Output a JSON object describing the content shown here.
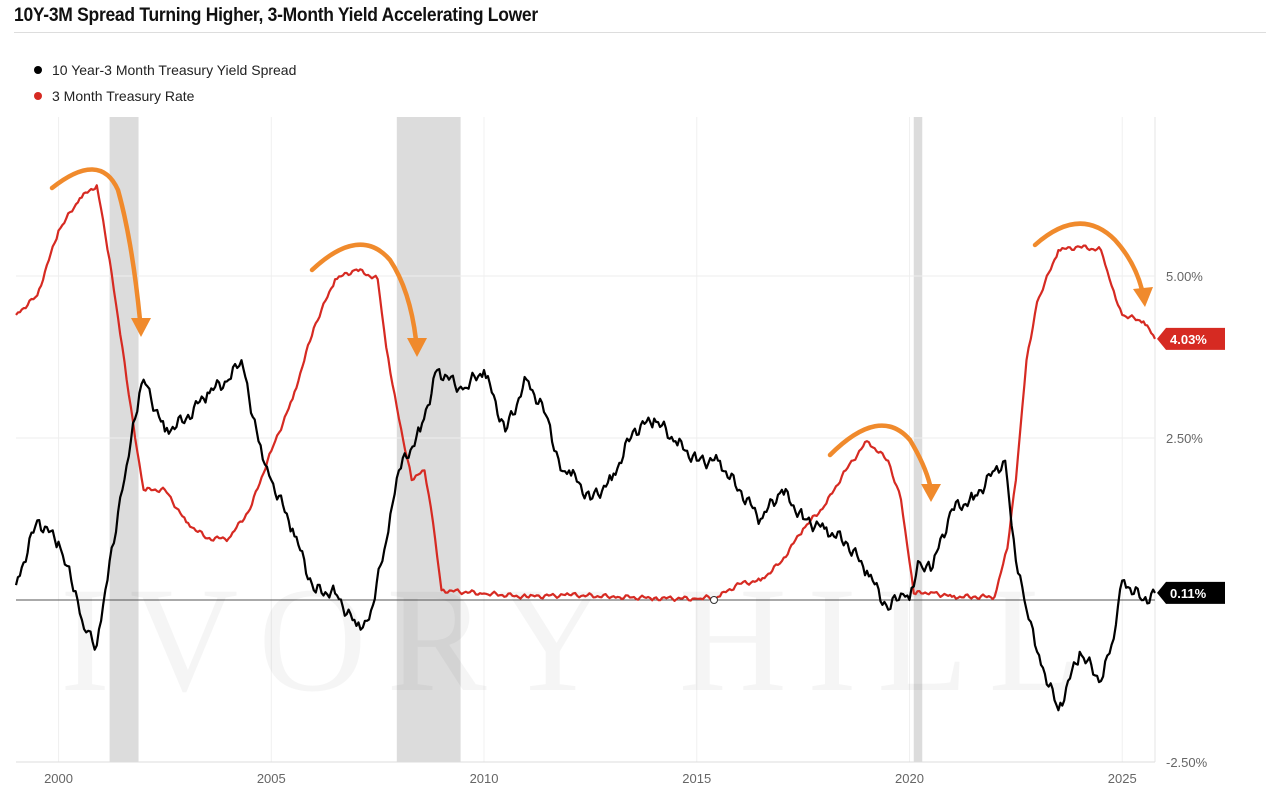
{
  "chart_data": {
    "type": "line",
    "title": "10Y-3M Spread Turning Higher, 3-Month Yield Accelerating Lower",
    "xlabel": "",
    "ylabel": "",
    "xlim": [
      1999.0,
      2025.77
    ],
    "ylim": [
      -2.5,
      7.45
    ],
    "x_ticks": [
      2000,
      2005,
      2010,
      2015,
      2020,
      2025
    ],
    "x_tick_labels": [
      "2000",
      "2005",
      "2010",
      "2015",
      "2020",
      "2025"
    ],
    "y_ticks": [
      5.0,
      2.5,
      -2.5
    ],
    "y_tick_labels": [
      "5.00%",
      "2.50%",
      "-2.50%"
    ],
    "legend_position": "top-left",
    "recessions": [
      [
        2001.2,
        2001.88
      ],
      [
        2007.95,
        2009.45
      ],
      [
        2020.1,
        2020.3
      ]
    ],
    "series": [
      {
        "name": "10 Year-3 Month Treasury Yield Spread",
        "color": "#000000",
        "last_label": "0.11%",
        "x": [
          1999.0,
          1999.5,
          2000.0,
          2000.3,
          2000.6,
          2000.9,
          2001.2,
          2001.5,
          2001.8,
          2002.0,
          2002.5,
          2003.0,
          2003.5,
          2004.0,
          2004.3,
          2004.7,
          2005.0,
          2005.5,
          2006.0,
          2006.5,
          2007.0,
          2007.3,
          2007.7,
          2008.0,
          2008.5,
          2008.9,
          2009.5,
          2010.0,
          2010.5,
          2011.0,
          2011.5,
          2011.8,
          2012.0,
          2012.5,
          2013.0,
          2013.5,
          2014.0,
          2014.5,
          2015.0,
          2015.5,
          2016.0,
          2016.5,
          2017.0,
          2017.5,
          2018.0,
          2018.5,
          2019.0,
          2019.5,
          2019.8,
          2020.0,
          2020.2,
          2020.5,
          2021.0,
          2021.5,
          2022.0,
          2022.25,
          2022.5,
          2022.75,
          2023.0,
          2023.5,
          2024.0,
          2024.5,
          2024.8,
          2025.0,
          2025.5,
          2025.77
        ],
        "y": [
          0.23,
          1.23,
          0.9,
          0.3,
          -0.45,
          -0.7,
          0.6,
          1.7,
          2.8,
          3.4,
          2.6,
          2.8,
          3.2,
          3.4,
          3.7,
          2.45,
          1.85,
          1.1,
          0.15,
          0.1,
          -0.4,
          -0.3,
          0.9,
          2.0,
          2.6,
          3.55,
          3.25,
          3.55,
          2.6,
          3.4,
          2.8,
          2.0,
          2.0,
          1.55,
          1.85,
          2.6,
          2.8,
          2.45,
          2.15,
          2.15,
          1.7,
          1.25,
          1.7,
          1.25,
          1.1,
          0.9,
          0.45,
          -0.15,
          0.1,
          0.0,
          0.6,
          0.45,
          1.4,
          1.55,
          2.0,
          2.15,
          0.6,
          -0.15,
          -0.8,
          -1.7,
          -0.8,
          -1.25,
          -0.6,
          0.3,
          0.0,
          0.11
        ]
      },
      {
        "name": "3 Month Treasury Rate",
        "color": "#d62a22",
        "last_label": "4.03%",
        "x": [
          1999.0,
          1999.5,
          2000.0,
          2000.5,
          2000.9,
          2001.2,
          2001.5,
          2001.8,
          2002.0,
          2002.5,
          2003.0,
          2003.5,
          2004.0,
          2004.5,
          2005.0,
          2005.5,
          2006.0,
          2006.5,
          2007.0,
          2007.5,
          2007.7,
          2008.0,
          2008.3,
          2008.6,
          2008.8,
          2009.0,
          2010.0,
          2011.0,
          2012.0,
          2013.0,
          2014.0,
          2015.0,
          2015.5,
          2016.0,
          2016.5,
          2017.0,
          2017.5,
          2018.0,
          2018.5,
          2019.0,
          2019.5,
          2019.8,
          2020.1,
          2020.5,
          2021.0,
          2021.5,
          2022.0,
          2022.3,
          2022.5,
          2022.75,
          2023.0,
          2023.5,
          2024.0,
          2024.5,
          2024.75,
          2025.0,
          2025.5,
          2025.77
        ],
        "y": [
          4.4,
          4.7,
          5.7,
          6.2,
          6.4,
          5.25,
          3.9,
          2.5,
          1.7,
          1.7,
          1.2,
          0.95,
          0.95,
          1.4,
          2.3,
          3.1,
          4.2,
          4.95,
          5.1,
          4.95,
          3.9,
          2.8,
          1.85,
          2.0,
          1.2,
          0.15,
          0.1,
          0.05,
          0.08,
          0.05,
          0.03,
          0.02,
          0.05,
          0.25,
          0.3,
          0.6,
          1.1,
          1.45,
          2.0,
          2.45,
          2.15,
          1.55,
          0.1,
          0.12,
          0.05,
          0.05,
          0.05,
          0.8,
          1.85,
          3.7,
          4.6,
          5.4,
          5.45,
          5.4,
          4.85,
          4.4,
          4.3,
          4.03
        ]
      }
    ],
    "watermark": "IVORY HILL"
  },
  "legend": [
    {
      "label": "10 Year-3 Month Treasury Yield Spread",
      "color": "#000000"
    },
    {
      "label": "3 Month Treasury Rate",
      "color": "#d62a22"
    }
  ],
  "annotation_color": "#f08a2c"
}
